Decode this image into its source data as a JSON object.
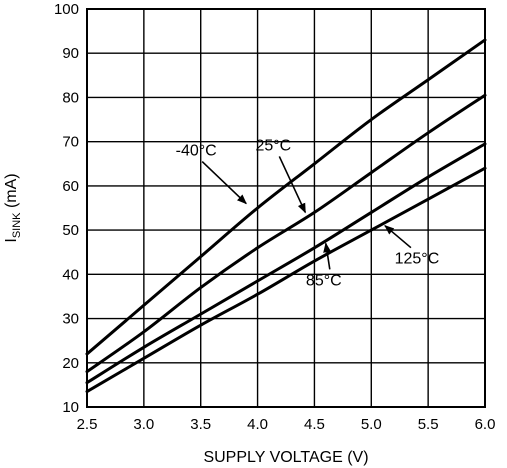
{
  "chart_data": {
    "type": "line",
    "title": "",
    "xlabel": "SUPPLY VOLTAGE (V)",
    "ylabel_main": "I",
    "ylabel_sub": "SINK",
    "ylabel_unit": " (mA)",
    "xlim": [
      2.5,
      6.0
    ],
    "ylim": [
      10,
      100
    ],
    "x_ticks": [
      "2.5",
      "3.0",
      "3.5",
      "4.0",
      "4.5",
      "5.0",
      "5.5",
      "6.0"
    ],
    "y_ticks": [
      "10",
      "20",
      "30",
      "40",
      "50",
      "60",
      "70",
      "80",
      "90",
      "100"
    ],
    "grid": true,
    "legend": "none",
    "line_color": "#000000",
    "series": [
      {
        "name": "-40°C",
        "x": [
          2.5,
          3.0,
          3.5,
          4.0,
          4.5,
          5.0,
          5.5,
          6.0
        ],
        "y": [
          22,
          33,
          44,
          55,
          65,
          75,
          84,
          93
        ],
        "label_at": [
          3.9,
          56
        ]
      },
      {
        "name": "25°C",
        "x": [
          2.5,
          3.0,
          3.5,
          4.0,
          4.5,
          5.0,
          5.5,
          6.0
        ],
        "y": [
          18,
          27,
          37,
          46,
          54,
          63,
          72,
          80.5
        ],
        "label_at": [
          4.42,
          54
        ]
      },
      {
        "name": "85°C",
        "x": [
          2.5,
          3.0,
          3.5,
          4.0,
          4.5,
          5.0,
          5.5,
          6.0
        ],
        "y": [
          15.5,
          23.5,
          31,
          38.5,
          46,
          54,
          62,
          69.5
        ],
        "label_at": [
          4.6,
          47
        ]
      },
      {
        "name": "125°C",
        "x": [
          2.5,
          3.0,
          3.5,
          4.0,
          4.5,
          5.0,
          5.5,
          6.0
        ],
        "y": [
          13.5,
          21,
          28.5,
          35.5,
          43,
          50,
          57,
          64
        ],
        "label_at": [
          5.12,
          51
        ]
      }
    ]
  }
}
